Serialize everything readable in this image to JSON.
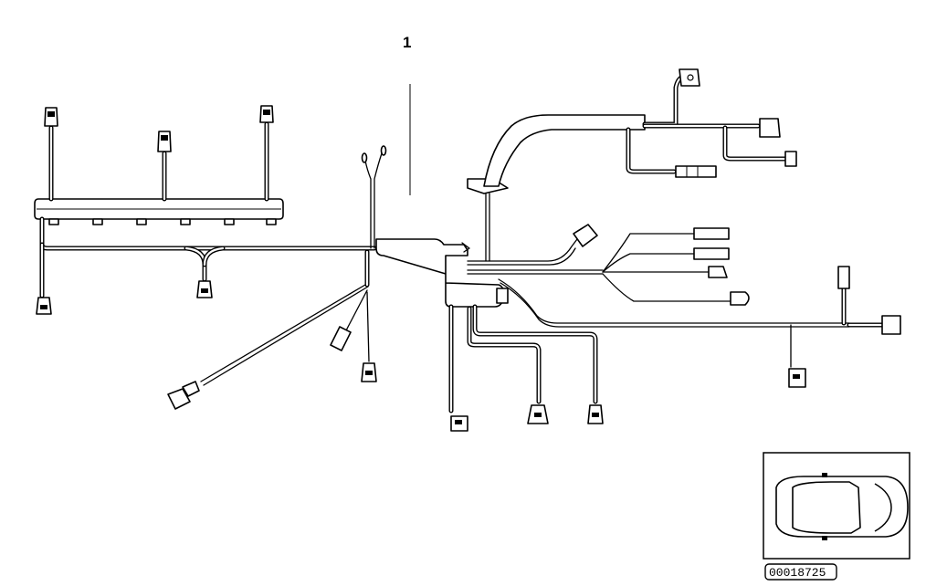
{
  "diagram": {
    "callout_number": "1",
    "part_number": "00018725"
  },
  "colors": {
    "line": "#000000",
    "background": "#ffffff"
  },
  "icons": [
    "car-top-view-icon"
  ]
}
